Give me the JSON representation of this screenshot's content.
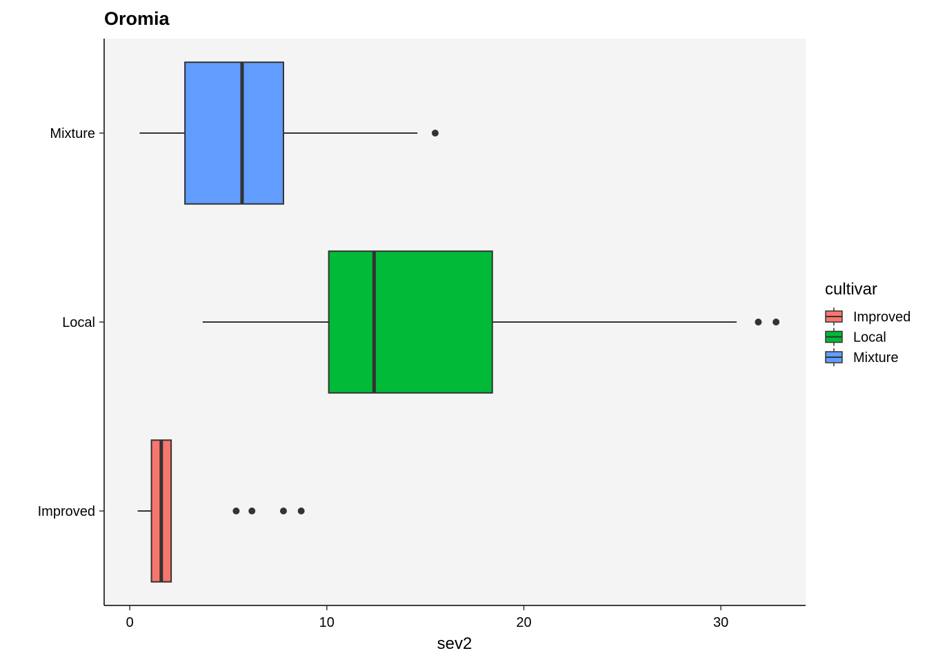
{
  "chart_data": {
    "type": "boxplot",
    "orientation": "horizontal",
    "title": "Oromia",
    "xlabel": "sev2",
    "ylabel": "",
    "xlim": [
      -1.3,
      34.3
    ],
    "x_ticks": [
      0,
      10,
      20,
      30
    ],
    "grid": false,
    "legend": {
      "title": "cultivar",
      "placement": "right",
      "entries": [
        "Improved",
        "Local",
        "Mixture"
      ]
    },
    "series": [
      {
        "name": "Improved",
        "color": "#F8766D",
        "stats": {
          "whisker_low": 0.4,
          "q1": 1.1,
          "median": 1.6,
          "q3": 2.1,
          "whisker_high": 2.1
        },
        "outliers": [
          5.4,
          6.2,
          7.8,
          8.7
        ]
      },
      {
        "name": "Local",
        "color": "#00BA38",
        "stats": {
          "whisker_low": 3.7,
          "q1": 10.1,
          "median": 12.4,
          "q3": 18.4,
          "whisker_high": 30.8
        },
        "outliers": [
          31.9,
          32.8
        ]
      },
      {
        "name": "Mixture",
        "color": "#619CFF",
        "stats": {
          "whisker_low": 0.5,
          "q1": 2.8,
          "median": 5.7,
          "q3": 7.8,
          "whisker_high": 14.6
        },
        "outliers": [
          15.5
        ]
      }
    ]
  }
}
